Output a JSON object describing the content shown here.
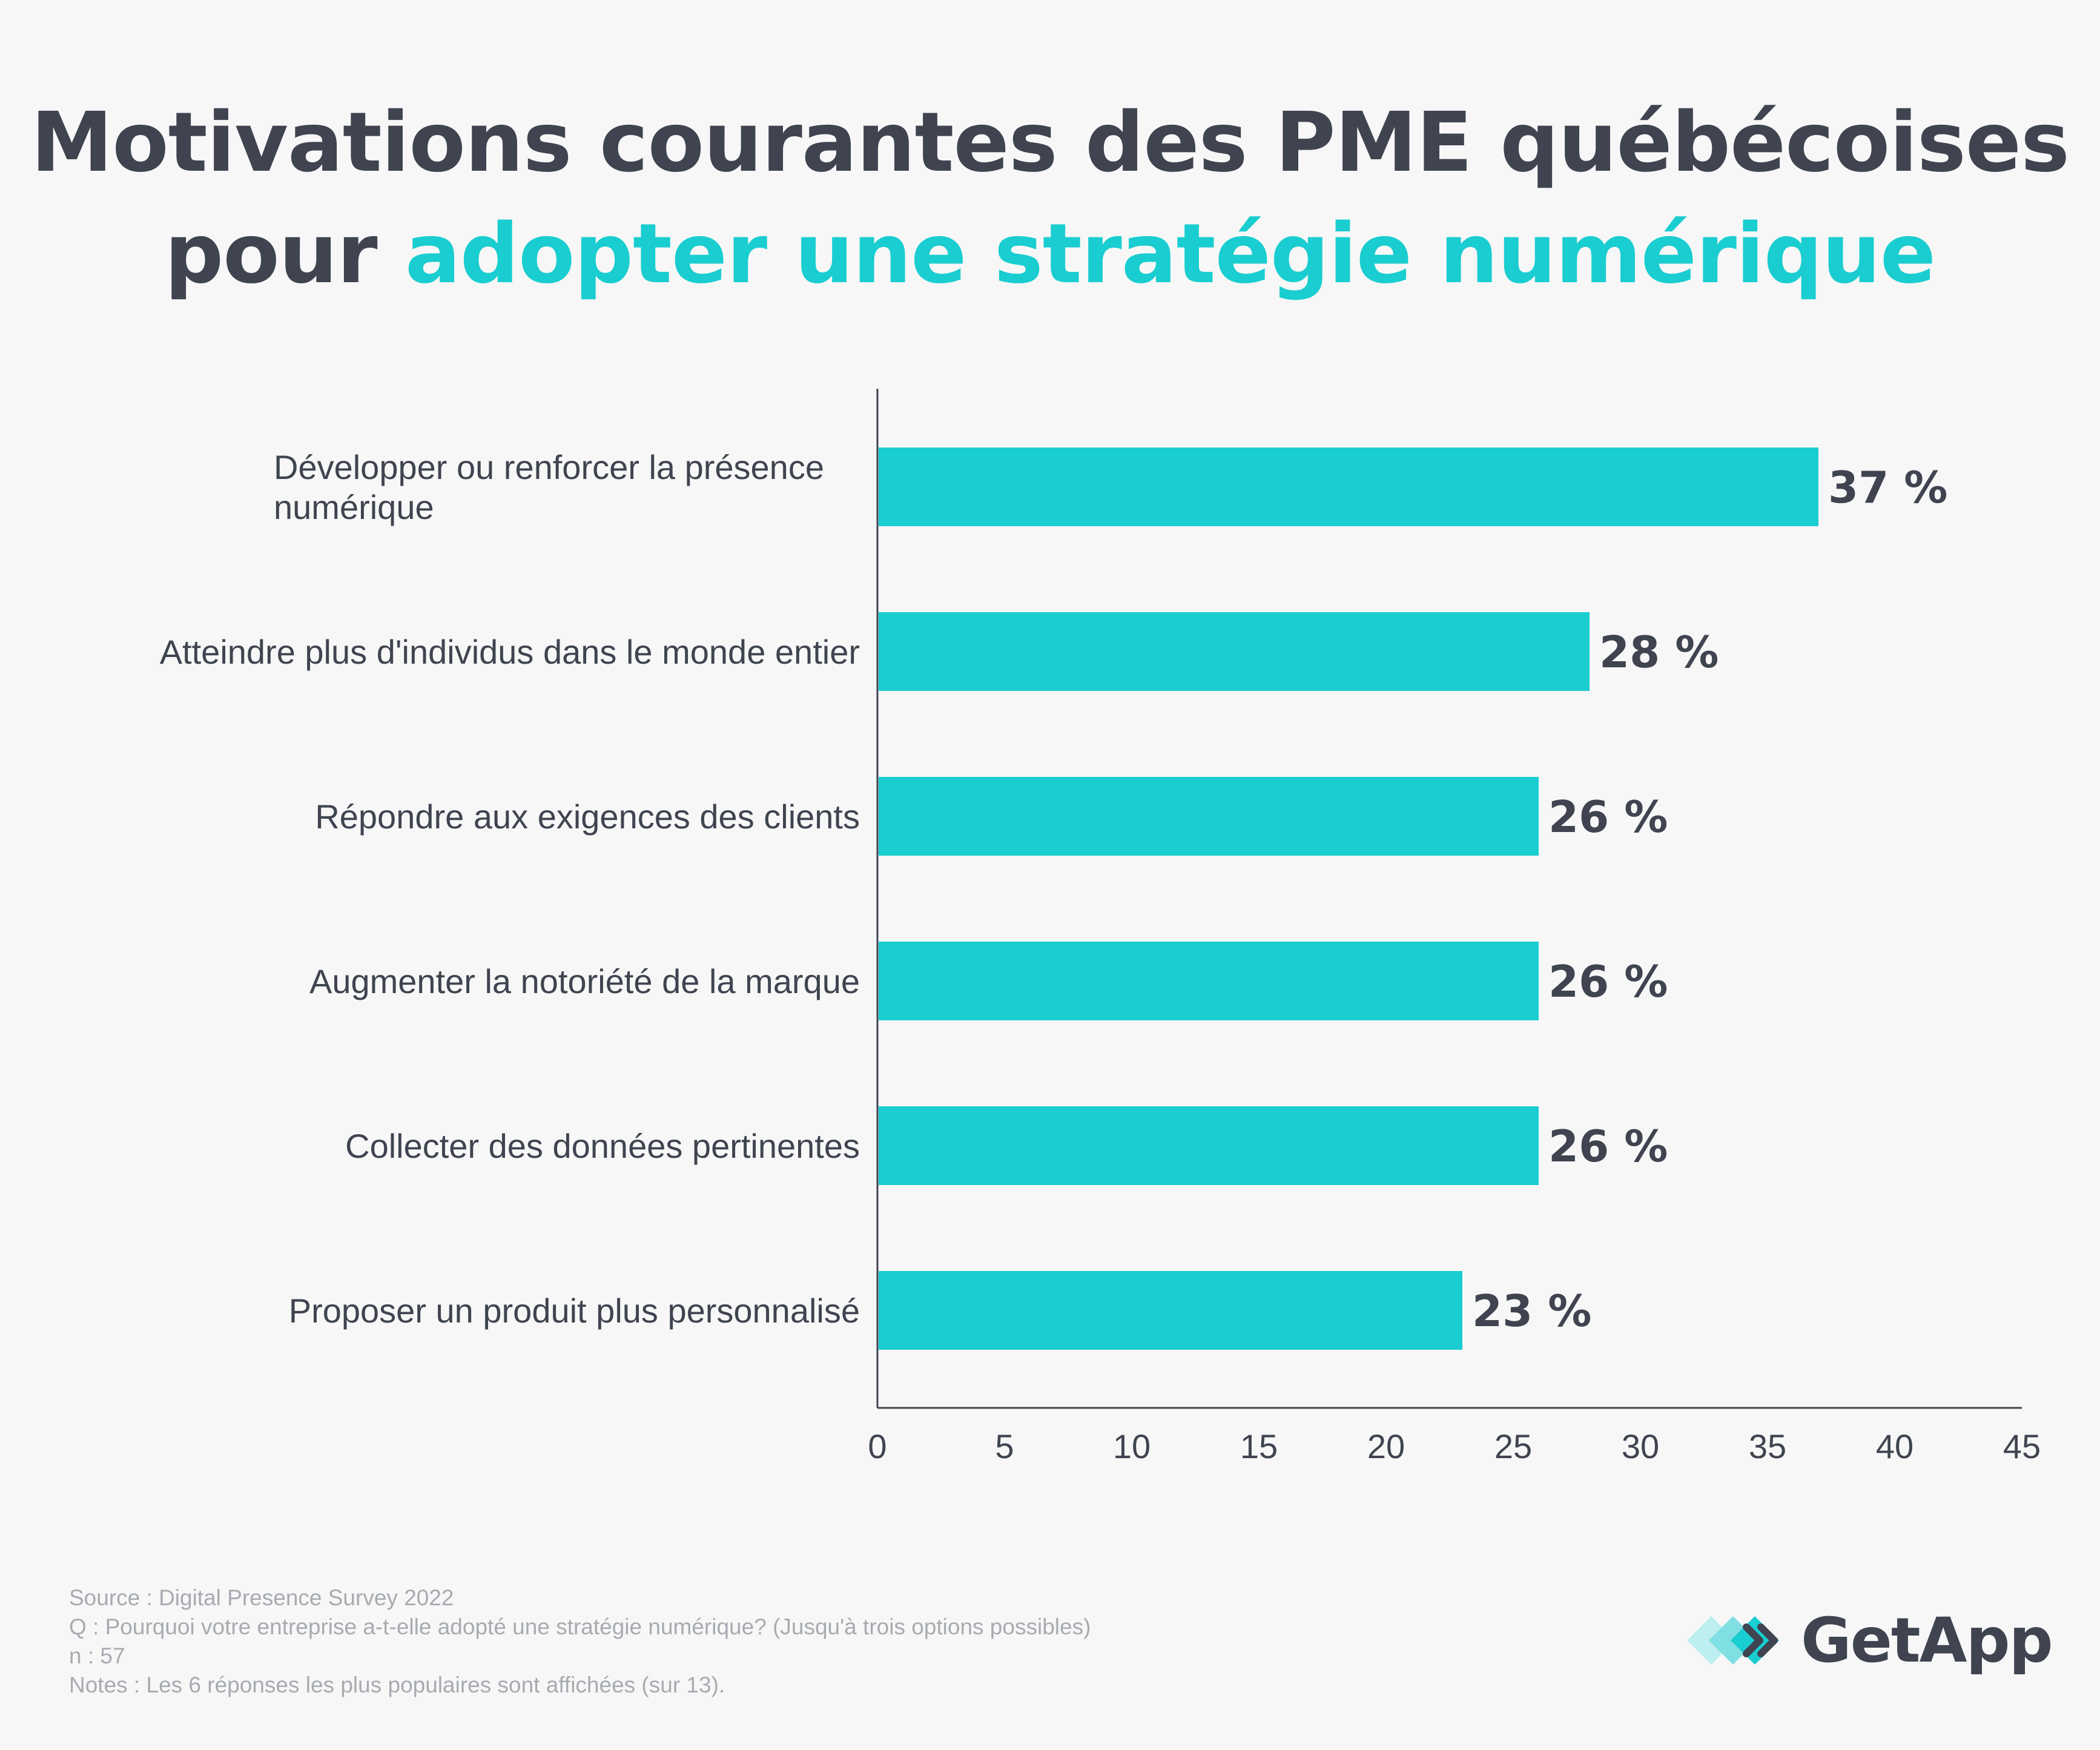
{
  "title": {
    "line1": "Motivations courantes des PME québécoises",
    "line2_prefix": "pour ",
    "line2_accent": "adopter une stratégie numérique"
  },
  "colors": {
    "bar": "#19cdd0",
    "text": "#3f4450",
    "accent": "#19cdd0",
    "axis": "#3f4450",
    "footer": "#a7abb1"
  },
  "chart_data": {
    "type": "bar",
    "orientation": "horizontal",
    "categories": [
      [
        "Développer ou renforcer la présence",
        "numérique"
      ],
      [
        "Atteindre plus d'individus dans le monde entier"
      ],
      [
        "Répondre aux exigences des clients"
      ],
      [
        "Augmenter la notoriété de la marque"
      ],
      [
        "Collecter des données pertinentes"
      ],
      [
        "Proposer un produit plus personnalisé"
      ]
    ],
    "values": [
      37,
      28,
      26,
      26,
      26,
      23
    ],
    "value_labels": [
      "37 %",
      "28 %",
      "26 %",
      "26 %",
      "26 %",
      "23 %"
    ],
    "xlim": [
      0,
      45
    ],
    "xticks": [
      0,
      5,
      10,
      15,
      20,
      25,
      30,
      35,
      40,
      45
    ],
    "xlabel": "",
    "ylabel": "",
    "grid": false
  },
  "footer": {
    "source": "Source : Digital Presence Survey 2022",
    "question": "Q :  Pourquoi votre entreprise a-t-elle adopté une stratégie numérique? (Jusqu'à trois options possibles)",
    "n": "n : 57",
    "notes": "Notes : Les 6 réponses les plus populaires sont affichées (sur 13)."
  },
  "logo": {
    "text": "GetApp",
    "icon": "getapp-chevrons-icon"
  }
}
